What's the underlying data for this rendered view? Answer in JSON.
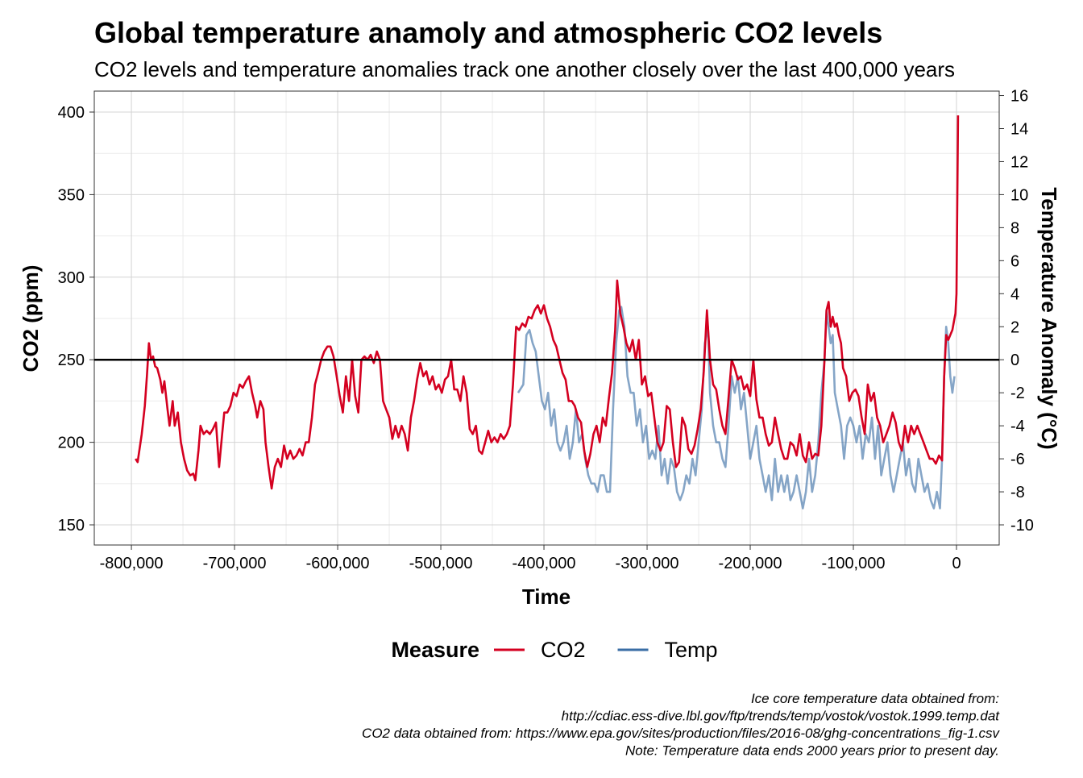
{
  "chart_data": {
    "type": "line",
    "title": "Global temperature anamoly and atmospheric CO2 levels",
    "subtitle": "CO2 levels and temperature anomalies track one another closely over the last 400,000 years",
    "x_label": "Time",
    "y_label": "CO2 (ppm)",
    "y2_label": "Temperature Anomaly (°C)",
    "legend_title": "Measure",
    "caption": [
      "Ice core temperature data obtained from:",
      "http://cdiac.ess-dive.lbl.gov/ftp/trends/temp/vostok/vostok.1999.temp.dat",
      "CO2 data obtained from: https://www.epa.gov/sites/production/files/2016-08/ghg-concentrations_fig-1.csv",
      "Note: Temperature data ends 2000 years prior to present day."
    ],
    "xlim": [
      -836000,
      41400
    ],
    "ylim": [
      137.8,
      412.7
    ],
    "y2lim": [
      -11.22,
      16.27
    ],
    "xticks": [
      {
        "value": -800000,
        "label": "-800,000"
      },
      {
        "value": -700000,
        "label": "-700,000"
      },
      {
        "value": -600000,
        "label": "-600,000"
      },
      {
        "value": -500000,
        "label": "-500,000"
      },
      {
        "value": -400000,
        "label": "-400,000"
      },
      {
        "value": -300000,
        "label": "-300,000"
      },
      {
        "value": -200000,
        "label": "-200,000"
      },
      {
        "value": -100000,
        "label": "-100,000"
      },
      0
    ],
    "yticks": [
      150,
      200,
      250,
      300,
      350,
      400
    ],
    "y2ticks": [
      -10,
      -8,
      -6,
      -4,
      -2,
      0,
      2,
      4,
      6,
      8,
      10,
      12,
      14,
      16
    ],
    "hline": 250,
    "grid": true,
    "series": [
      {
        "name": "CO2",
        "color": "#d40020",
        "x": [
          -796000,
          -794000,
          -790000,
          -787000,
          -785000,
          -783000,
          -781000,
          -779000,
          -777000,
          -775000,
          -772000,
          -770000,
          -768000,
          -765000,
          -763000,
          -760000,
          -758000,
          -755000,
          -752000,
          -749000,
          -746000,
          -743000,
          -740000,
          -738000,
          -735000,
          -733000,
          -730000,
          -727000,
          -724000,
          -721000,
          -718000,
          -715000,
          -712000,
          -710000,
          -707000,
          -704000,
          -701000,
          -698000,
          -695000,
          -692000,
          -689000,
          -686000,
          -683000,
          -680000,
          -678000,
          -675000,
          -672000,
          -670000,
          -667000,
          -664000,
          -661000,
          -658000,
          -655000,
          -652000,
          -649000,
          -646000,
          -643000,
          -640000,
          -637000,
          -634000,
          -631000,
          -628000,
          -625000,
          -622000,
          -619000,
          -616000,
          -613000,
          -610000,
          -607000,
          -604000,
          -601000,
          -598000,
          -595000,
          -592000,
          -589000,
          -586000,
          -583000,
          -580000,
          -577000,
          -574000,
          -571000,
          -568000,
          -565000,
          -562000,
          -559000,
          -556000,
          -553000,
          -550000,
          -547000,
          -544000,
          -541000,
          -538000,
          -535000,
          -532000,
          -529000,
          -526000,
          -523000,
          -520000,
          -517000,
          -514000,
          -511000,
          -508000,
          -505000,
          -502000,
          -499000,
          -496000,
          -493000,
          -490000,
          -487000,
          -484000,
          -481000,
          -478000,
          -475000,
          -472000,
          -469000,
          -466000,
          -463000,
          -460000,
          -457000,
          -454000,
          -451000,
          -448000,
          -445000,
          -442000,
          -439000,
          -436000,
          -433000,
          -430000,
          -427000,
          -424000,
          -421000,
          -418000,
          -415000,
          -412000,
          -409000,
          -406000,
          -403000,
          -400000,
          -397000,
          -394000,
          -391000,
          -388000,
          -385000,
          -382000,
          -379000,
          -376000,
          -373000,
          -370000,
          -367000,
          -364000,
          -361000,
          -358000,
          -355000,
          -352000,
          -349000,
          -346000,
          -343000,
          -340000,
          -337000,
          -334000,
          -331000,
          -329000,
          -326000,
          -323000,
          -320000,
          -317000,
          -314000,
          -311000,
          -308000,
          -305000,
          -302000,
          -299000,
          -296000,
          -293000,
          -290000,
          -287000,
          -284000,
          -281000,
          -278000,
          -275000,
          -272000,
          -269000,
          -266000,
          -263000,
          -260000,
          -257000,
          -254000,
          -251000,
          -248000,
          -245000,
          -242000,
          -239000,
          -236000,
          -233000,
          -230000,
          -227000,
          -224000,
          -221000,
          -218000,
          -215000,
          -212000,
          -209000,
          -206000,
          -203000,
          -200000,
          -197000,
          -194000,
          -191000,
          -188000,
          -185000,
          -182000,
          -179000,
          -176000,
          -173000,
          -170000,
          -167000,
          -164000,
          -161000,
          -158000,
          -155000,
          -152000,
          -149000,
          -146000,
          -143000,
          -140000,
          -137000,
          -134000,
          -131000,
          -128000,
          -126000,
          -124000,
          -122000,
          -120000,
          -118000,
          -116000,
          -114000,
          -112000,
          -110000,
          -107000,
          -104000,
          -101000,
          -98000,
          -95000,
          -92000,
          -89000,
          -86000,
          -83000,
          -80000,
          -77000,
          -74000,
          -71000,
          -68000,
          -65000,
          -62000,
          -59000,
          -56000,
          -53000,
          -50000,
          -47000,
          -44000,
          -41000,
          -38000,
          -35000,
          -32000,
          -29000,
          -26000,
          -23000,
          -20000,
          -17000,
          -14000,
          -12000,
          -10000,
          -8000,
          -6000,
          -4000,
          -2000,
          -1000,
          0,
          1500
        ],
        "values": [
          190,
          188,
          205,
          222,
          240,
          260,
          250,
          252,
          246,
          245,
          238,
          230,
          237,
          220,
          210,
          225,
          210,
          218,
          200,
          190,
          183,
          180,
          181,
          177,
          195,
          210,
          205,
          207,
          205,
          208,
          212,
          185,
          205,
          218,
          218,
          222,
          230,
          228,
          235,
          233,
          237,
          240,
          230,
          222,
          215,
          225,
          220,
          200,
          185,
          172,
          185,
          190,
          185,
          198,
          190,
          195,
          190,
          192,
          196,
          192,
          200,
          200,
          215,
          235,
          242,
          250,
          255,
          258,
          258,
          252,
          240,
          228,
          218,
          240,
          225,
          250,
          228,
          218,
          250,
          252,
          250,
          253,
          248,
          255,
          250,
          225,
          220,
          215,
          202,
          210,
          203,
          210,
          205,
          195,
          215,
          225,
          238,
          248,
          240,
          243,
          235,
          240,
          232,
          235,
          230,
          238,
          240,
          250,
          232,
          232,
          225,
          240,
          230,
          208,
          205,
          210,
          195,
          193,
          200,
          207,
          200,
          203,
          200,
          205,
          202,
          205,
          210,
          235,
          270,
          268,
          272,
          270,
          276,
          275,
          280,
          283,
          278,
          283,
          275,
          270,
          262,
          258,
          250,
          242,
          238,
          225,
          225,
          222,
          215,
          212,
          195,
          185,
          193,
          205,
          210,
          200,
          215,
          210,
          227,
          242,
          268,
          298,
          278,
          270,
          260,
          255,
          262,
          250,
          262,
          235,
          240,
          228,
          230,
          215,
          200,
          195,
          200,
          222,
          220,
          200,
          185,
          188,
          215,
          210,
          196,
          193,
          198,
          208,
          220,
          243,
          280,
          250,
          235,
          232,
          220,
          210,
          205,
          227,
          250,
          245,
          238,
          240,
          232,
          235,
          228,
          250,
          226,
          215,
          215,
          205,
          198,
          200,
          215,
          205,
          196,
          190,
          190,
          200,
          198,
          192,
          205,
          192,
          188,
          200,
          190,
          193,
          192,
          210,
          250,
          280,
          285,
          270,
          276,
          270,
          272,
          265,
          260,
          245,
          240,
          225,
          230,
          232,
          228,
          215,
          205,
          235,
          225,
          230,
          215,
          210,
          200,
          205,
          210,
          218,
          212,
          200,
          195,
          210,
          200,
          210,
          205,
          210,
          205,
          200,
          195,
          190,
          190,
          187,
          192,
          189,
          240,
          265,
          262,
          265,
          268,
          275,
          278,
          290,
          398
        ]
      },
      {
        "name": "Temp",
        "color": "#3a6ea5",
        "x": [
          -425000,
          -420000,
          -417000,
          -414000,
          -411000,
          -408000,
          -405000,
          -402000,
          -399000,
          -396000,
          -393000,
          -390000,
          -387000,
          -384000,
          -381000,
          -378000,
          -375000,
          -372000,
          -369000,
          -366000,
          -363000,
          -360000,
          -357000,
          -354000,
          -351000,
          -348000,
          -345000,
          -342000,
          -339000,
          -336000,
          -333000,
          -330000,
          -327000,
          -325000,
          -322000,
          -319000,
          -316000,
          -313000,
          -310000,
          -307000,
          -304000,
          -301000,
          -298000,
          -295000,
          -292000,
          -289000,
          -286000,
          -283000,
          -280000,
          -277000,
          -274000,
          -271000,
          -268000,
          -265000,
          -262000,
          -259000,
          -256000,
          -253000,
          -250000,
          -247000,
          -244000,
          -241000,
          -239000,
          -236000,
          -233000,
          -230000,
          -227000,
          -224000,
          -221000,
          -218000,
          -215000,
          -212000,
          -209000,
          -206000,
          -203000,
          -200000,
          -197000,
          -194000,
          -191000,
          -188000,
          -185000,
          -182000,
          -179000,
          -176000,
          -173000,
          -170000,
          -167000,
          -164000,
          -161000,
          -158000,
          -155000,
          -152000,
          -149000,
          -146000,
          -143000,
          -140000,
          -137000,
          -134000,
          -131000,
          -128000,
          -126000,
          -124000,
          -122000,
          -120000,
          -118000,
          -115000,
          -112000,
          -109000,
          -106000,
          -103000,
          -100000,
          -97000,
          -94000,
          -91000,
          -88000,
          -85000,
          -82000,
          -79000,
          -76000,
          -73000,
          -70000,
          -67000,
          -64000,
          -61000,
          -58000,
          -55000,
          -52000,
          -49000,
          -46000,
          -43000,
          -40000,
          -37000,
          -34000,
          -31000,
          -28000,
          -25000,
          -22000,
          -19000,
          -16000,
          -14000,
          -12000,
          -10000,
          -8000,
          -6000,
          -4000,
          -2000
        ],
        "values": [
          -2,
          -1.5,
          1.5,
          1.8,
          1,
          0.5,
          -1,
          -2.5,
          -3,
          -2,
          -4,
          -3,
          -5,
          -5.5,
          -5,
          -4,
          -6,
          -5,
          -3,
          -5,
          -4.5,
          -6,
          -7,
          -7.5,
          -7.5,
          -8,
          -7,
          -7,
          -8,
          -8,
          -3,
          1,
          3,
          3.2,
          2,
          -1,
          -2,
          -2,
          -4,
          -3,
          -5,
          -4,
          -6,
          -5.5,
          -6,
          -4,
          -7,
          -6,
          -7.5,
          -6,
          -6.5,
          -8,
          -8.5,
          -8,
          -7,
          -7.5,
          -6,
          -7,
          -5,
          -3,
          1,
          2,
          -2,
          -4,
          -5,
          -5,
          -6,
          -6.5,
          -4,
          -1,
          -2,
          -1,
          -3,
          -2,
          -4,
          -6,
          -5,
          -4,
          -6,
          -7,
          -8,
          -7,
          -8.5,
          -6,
          -8,
          -7,
          -8,
          -7,
          -8.5,
          -8,
          -7,
          -8,
          -9,
          -8,
          -6,
          -8,
          -7,
          -5,
          -2,
          0,
          3,
          2,
          1,
          1.5,
          -2,
          -3,
          -4,
          -6,
          -4,
          -3.5,
          -4,
          -5,
          -4,
          -6,
          -4.5,
          -5,
          -3.5,
          -6,
          -4,
          -7,
          -6,
          -5,
          -7,
          -8,
          -7,
          -6,
          -5,
          -7,
          -6,
          -7.5,
          -8,
          -6,
          -7,
          -8,
          -7.5,
          -8.5,
          -9,
          -8,
          -9,
          -6,
          -1,
          2,
          1,
          -1,
          -2,
          -1
        ],
        "axis": "y2"
      }
    ]
  }
}
